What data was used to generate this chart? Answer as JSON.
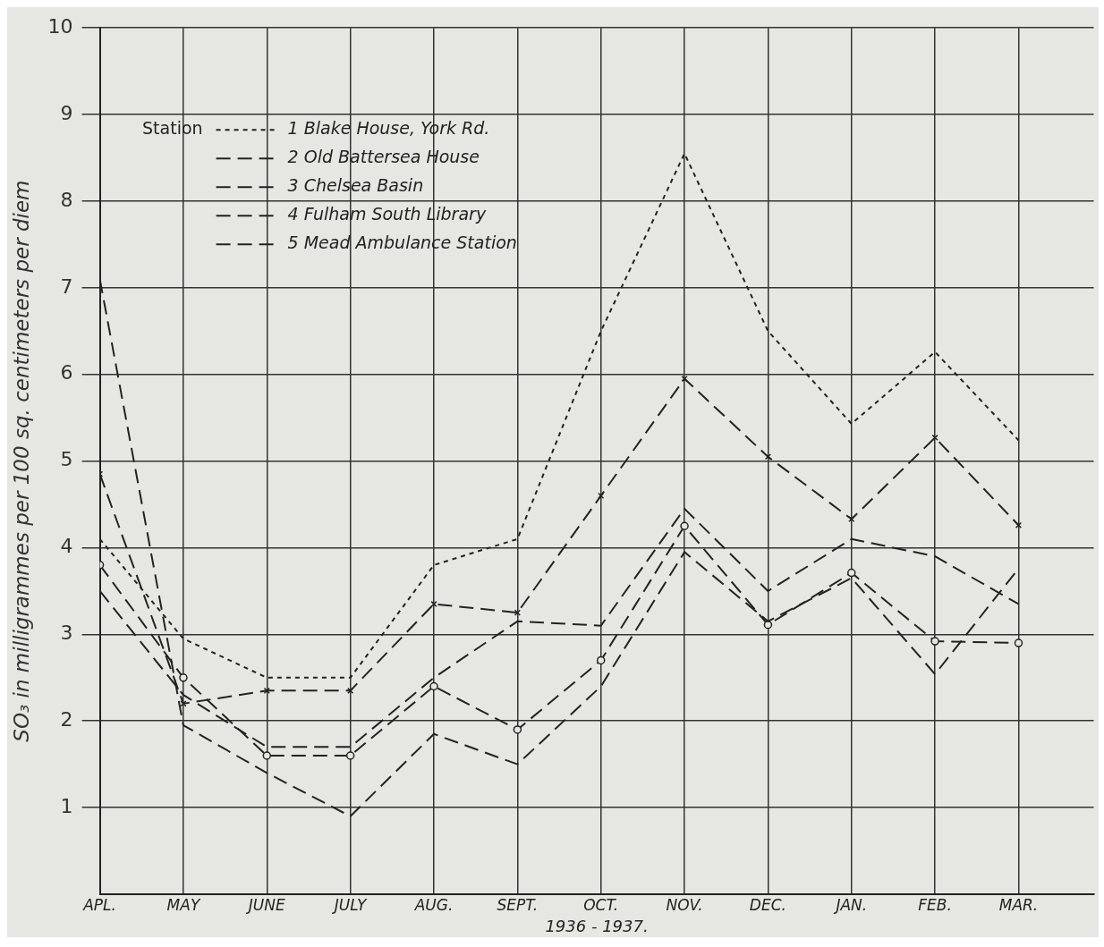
{
  "chart_data": {
    "type": "line",
    "xlabel": "1936 - 1937.",
    "ylabel": "SO₃ in milligrammes per 100 sq. centimeters per diem",
    "categories": [
      "APL.",
      "MAY",
      "JUNE",
      "JULY",
      "AUG.",
      "SEPT.",
      "OCT.",
      "NOV.",
      "DEC.",
      "JAN.",
      "FEB.",
      "MAR."
    ],
    "legend_title": "Station",
    "legend": "top left",
    "grid": true,
    "ylim": [
      0,
      10
    ],
    "yticks": [
      1,
      2,
      3,
      4,
      5,
      6,
      7,
      8,
      9,
      10
    ],
    "series": [
      {
        "name": "1 Blake House, York Rd.",
        "color": "#222222",
        "line_style": "dotted",
        "marker": "none",
        "values": [
          4.1,
          2.95,
          2.5,
          2.5,
          3.8,
          4.1,
          6.5,
          8.55,
          6.5,
          5.43,
          6.26,
          5.24
        ]
      },
      {
        "name": "2 Old Battersea House",
        "color": "#222222",
        "line_style": "dashed",
        "marker": "none",
        "values": [
          3.5,
          2.3,
          1.7,
          1.7,
          2.5,
          3.15,
          3.1,
          4.45,
          3.5,
          4.1,
          3.9,
          3.35
        ]
      },
      {
        "name": "3 Chelsea Basin",
        "color": "#222222",
        "line_style": "dashed",
        "marker": "cross",
        "values": [
          4.85,
          2.2,
          2.35,
          2.35,
          3.35,
          3.25,
          4.6,
          5.95,
          5.05,
          4.33,
          5.27,
          4.26
        ]
      },
      {
        "name": "4 Fulham South Library",
        "color": "#222222",
        "line_style": "dashed",
        "marker": "none",
        "values": [
          7.1,
          1.95,
          1.4,
          0.9,
          1.85,
          1.5,
          2.4,
          3.95,
          3.15,
          3.65,
          2.54,
          3.76
        ]
      },
      {
        "name": "5 Mead Ambulance Station",
        "color": "#222222",
        "line_style": "dashed",
        "marker": "circle",
        "values": [
          3.8,
          2.5,
          1.6,
          1.6,
          2.4,
          1.9,
          2.7,
          4.25,
          3.11,
          3.71,
          2.92,
          2.9
        ]
      }
    ]
  }
}
